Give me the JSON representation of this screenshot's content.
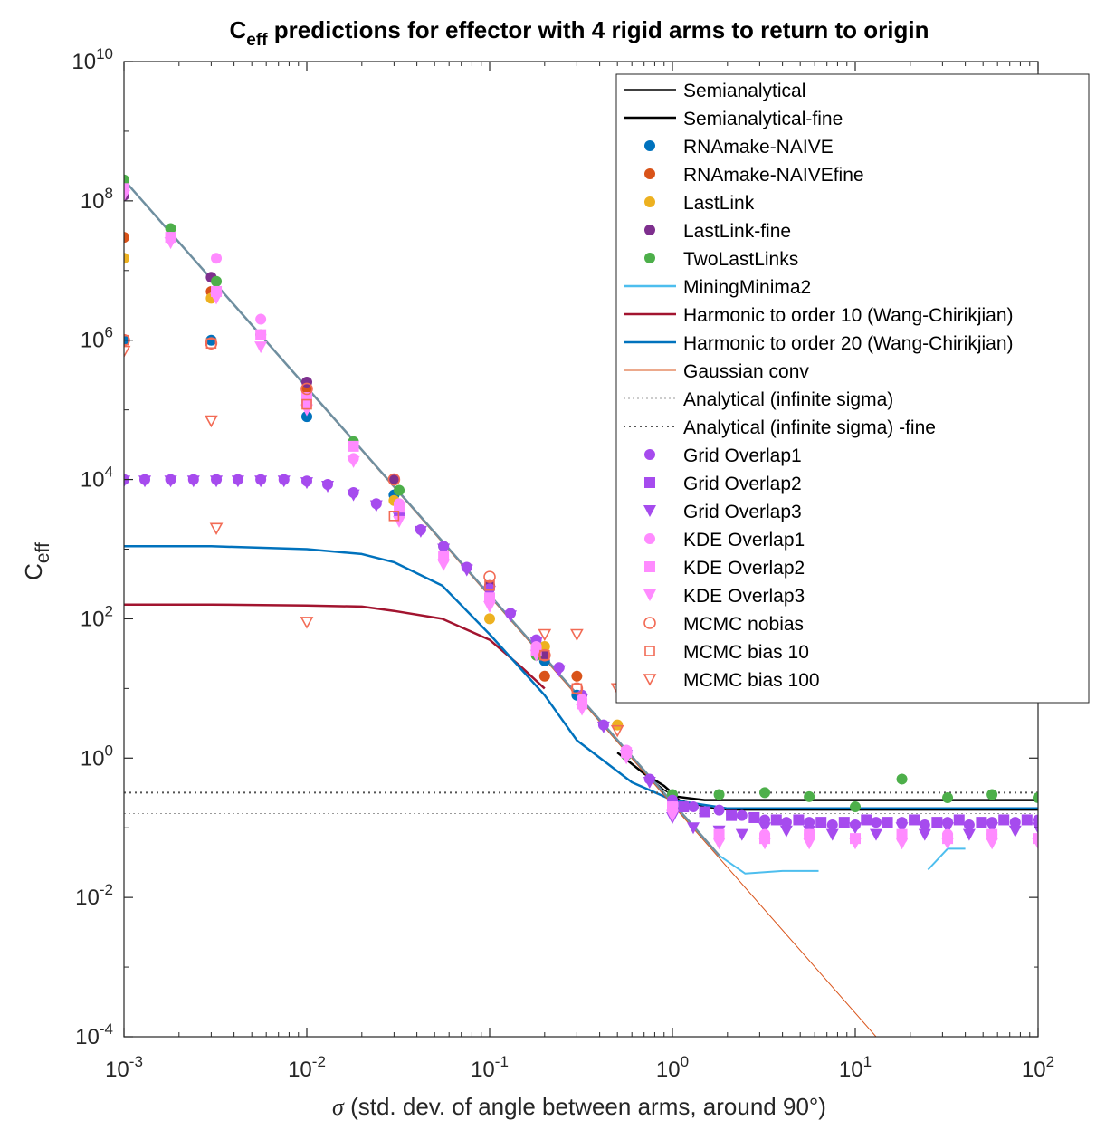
{
  "chart_data": {
    "type": "scatter",
    "title_main": "C",
    "title_sub": "eff",
    "title_rest": " predictions for effector with 4 rigid arms to return to origin",
    "xlabel_sigma": "σ",
    "xlabel_rest": " (std. dev. of angle between arms, around 90°)",
    "ylabel_main": "C",
    "ylabel_sub": "eff",
    "xscale": "log",
    "yscale": "log",
    "xlim": [
      0.001,
      100
    ],
    "ylim": [
      0.0001,
      10000000000
    ],
    "grid": false,
    "legend_position": "top-right",
    "x_ticks": [
      {
        "value": 0.001,
        "base": "10",
        "exp": "-3"
      },
      {
        "value": 0.01,
        "base": "10",
        "exp": "-2"
      },
      {
        "value": 0.1,
        "base": "10",
        "exp": "-1"
      },
      {
        "value": 1,
        "base": "10",
        "exp": "0"
      },
      {
        "value": 10,
        "base": "10",
        "exp": "1"
      },
      {
        "value": 100,
        "base": "10",
        "exp": "2"
      }
    ],
    "y_ticks": [
      {
        "value": 0.0001,
        "base": "10",
        "exp": "-4"
      },
      {
        "value": 0.01,
        "base": "10",
        "exp": "-2"
      },
      {
        "value": 1,
        "base": "10",
        "exp": "0"
      },
      {
        "value": 100,
        "base": "10",
        "exp": "2"
      },
      {
        "value": 10000,
        "base": "10",
        "exp": "4"
      },
      {
        "value": 1000000,
        "base": "10",
        "exp": "6"
      },
      {
        "value": 100000000,
        "base": "10",
        "exp": "8"
      },
      {
        "value": 10000000000,
        "base": "10",
        "exp": "10"
      }
    ],
    "series": [
      {
        "name": "Semianalytical",
        "kind": "line",
        "color": "#000000",
        "width": 1.5,
        "x": [
          0.5,
          0.7,
          0.9,
          1.1,
          1.5,
          2,
          5,
          10,
          100
        ],
        "y": [
          1.2,
          0.6,
          0.35,
          0.25,
          0.2,
          0.18,
          0.18,
          0.18,
          0.18
        ]
      },
      {
        "name": "Semianalytical-fine",
        "kind": "line",
        "color": "#000000",
        "width": 2.5,
        "x": [
          0.5,
          0.7,
          0.9,
          1.05,
          1.5,
          2,
          5,
          10,
          100
        ],
        "y": [
          1.2,
          0.6,
          0.4,
          0.28,
          0.25,
          0.25,
          0.25,
          0.25,
          0.25
        ]
      },
      {
        "name": "RNAmake-NAIVE",
        "kind": "marker",
        "marker": "circle",
        "color": "#0072BD",
        "x": [
          0.001,
          0.003,
          0.01,
          0.03,
          0.1,
          0.2,
          0.3
        ],
        "y": [
          1000000,
          1000000,
          80000,
          6000,
          200,
          25,
          8
        ]
      },
      {
        "name": "RNAmake-NAIVEfine",
        "kind": "marker",
        "marker": "circle",
        "color": "#D95319",
        "x": [
          0.001,
          0.003,
          0.01,
          0.03,
          0.1,
          0.2,
          0.3
        ],
        "y": [
          30000000,
          5000000,
          200000,
          10000,
          300,
          15,
          15
        ]
      },
      {
        "name": "LastLink",
        "kind": "marker",
        "marker": "circle",
        "color": "#EDB120",
        "x": [
          0.001,
          0.003,
          0.01,
          0.03,
          0.1,
          0.2,
          0.5
        ],
        "y": [
          15000000,
          4000000,
          150000,
          5000,
          100,
          40,
          3
        ]
      },
      {
        "name": "LastLink-fine",
        "kind": "marker",
        "marker": "circle",
        "color": "#7E2F8E",
        "x": [
          0.001,
          0.003,
          0.01,
          0.03,
          0.1,
          0.2
        ],
        "y": [
          120000000,
          8000000,
          250000,
          10000,
          300,
          30
        ]
      },
      {
        "name": "TwoLastLinks",
        "kind": "marker",
        "marker": "circle",
        "color": "#4DAF4A",
        "x": [
          0.001,
          0.0018,
          0.0032,
          0.0056,
          0.018,
          0.032,
          0.056,
          0.1,
          0.18,
          0.32,
          0.56,
          1,
          1.8,
          3.2,
          5.6,
          10,
          18,
          32,
          56,
          100
        ],
        "y": [
          200000000,
          40000000,
          7000000,
          1200000,
          35000,
          7000,
          1100,
          200,
          30,
          6,
          1.1,
          0.3,
          0.3,
          0.32,
          0.28,
          0.2,
          0.5,
          0.27,
          0.3,
          0.27
        ]
      },
      {
        "name": "MiningMinima2",
        "kind": "line",
        "color": "#4DBEEE",
        "width": 2,
        "x": [
          1.8,
          2.5,
          4,
          6.3
        ],
        "y": [
          0.04,
          0.022,
          0.024,
          0.024
        ]
      },
      {
        "name": "MiningMinima2-b",
        "kind": "line",
        "color": "#4DBEEE",
        "width": 2,
        "x": [
          25,
          32,
          40
        ],
        "y": [
          0.025,
          0.05,
          0.05
        ]
      },
      {
        "name": "Harmonic to order 10 (Wang-Chirikjian)",
        "kind": "line",
        "color": "#A2142F",
        "width": 2.5,
        "x": [
          0.001,
          0.003,
          0.01,
          0.02,
          0.03,
          0.055,
          0.1,
          0.15,
          0.2
        ],
        "y": [
          160,
          160,
          155,
          150,
          130,
          100,
          50,
          20,
          10
        ]
      },
      {
        "name": "Harmonic to order 20 (Wang-Chirikjian)",
        "kind": "line",
        "color": "#0072BD",
        "width": 2.5,
        "x": [
          0.001,
          0.003,
          0.01,
          0.02,
          0.03,
          0.055,
          0.1,
          0.2,
          0.3,
          0.6,
          1,
          2,
          100
        ],
        "y": [
          1100,
          1100,
          1000,
          850,
          650,
          300,
          60,
          8,
          1.8,
          0.45,
          0.25,
          0.19,
          0.19
        ]
      },
      {
        "name": "Gaussian conv",
        "kind": "line",
        "color": "#D95319",
        "width": 1,
        "x": [
          0.001,
          13
        ],
        "y": [
          200000000,
          0.0001
        ]
      },
      {
        "name": "Gaussian-approx",
        "kind": "line",
        "color": "#6F8FA0",
        "width": 2.5,
        "x": [
          0.001,
          1.8
        ],
        "y": [
          200000000,
          0.04
        ]
      },
      {
        "name": "Analytical (infinite sigma)",
        "kind": "line",
        "color": "#9a9a9a",
        "width": 1,
        "dash": "2,3",
        "x": [
          0.001,
          100
        ],
        "y": [
          0.16,
          0.16
        ]
      },
      {
        "name": "Analytical (infinite sigma) -fine",
        "kind": "line",
        "color": "#555555",
        "width": 2,
        "dash": "2,4",
        "x": [
          0.001,
          100
        ],
        "y": [
          0.32,
          0.32
        ]
      },
      {
        "name": "Grid Overlap1",
        "kind": "marker",
        "marker": "circle",
        "color": "#A64BEE",
        "x": [
          0.001,
          0.0013,
          0.0018,
          0.0024,
          0.0032,
          0.0042,
          0.0056,
          0.0075,
          0.01,
          0.013,
          0.018,
          0.024,
          0.032,
          0.042,
          0.056,
          0.075,
          0.1,
          0.13,
          0.18,
          0.24,
          0.32,
          0.42,
          0.56,
          0.75,
          1,
          1.3,
          1.8,
          2.4,
          3.2,
          4.2,
          5.6,
          7.5,
          10,
          13,
          18,
          24,
          32,
          42,
          56,
          75,
          100
        ],
        "y": [
          10000,
          10000,
          10000,
          10000,
          10000,
          10000,
          10000,
          10000,
          9500,
          8500,
          6500,
          4500,
          3000,
          1900,
          1100,
          550,
          270,
          120,
          50,
          20,
          8,
          3,
          1.2,
          0.5,
          0.25,
          0.2,
          0.18,
          0.15,
          0.13,
          0.12,
          0.12,
          0.11,
          0.11,
          0.12,
          0.12,
          0.11,
          0.12,
          0.11,
          0.12,
          0.12,
          0.13
        ]
      },
      {
        "name": "Grid Overlap2",
        "kind": "marker",
        "marker": "square",
        "color": "#A64BEE",
        "x": [
          1.15,
          1.5,
          2.1,
          2.8,
          3.7,
          4.9,
          6.5,
          8.7,
          11.5,
          15,
          21,
          28,
          37,
          49,
          65,
          87
        ],
        "y": [
          0.2,
          0.17,
          0.15,
          0.14,
          0.13,
          0.13,
          0.12,
          0.12,
          0.13,
          0.12,
          0.13,
          0.12,
          0.13,
          0.12,
          0.13,
          0.13
        ]
      },
      {
        "name": "Grid Overlap3",
        "kind": "marker",
        "marker": "tri-down",
        "color": "#A64BEE",
        "x": [
          0.001,
          0.0013,
          0.0018,
          0.0024,
          0.0032,
          0.0042,
          0.0056,
          0.0075,
          0.01,
          0.013,
          0.018,
          0.024,
          0.032,
          0.042,
          0.056,
          0.075,
          0.1,
          0.13,
          0.18,
          0.24,
          0.32,
          0.42,
          0.56,
          0.75,
          1,
          1.3,
          1.8,
          2.4,
          3.2,
          4.2,
          5.6,
          7.5,
          10,
          13,
          18,
          24,
          32,
          42,
          56,
          75,
          100
        ],
        "y": [
          9500,
          9500,
          9500,
          9500,
          9500,
          9500,
          9500,
          9500,
          9000,
          8000,
          6000,
          4200,
          2800,
          1800,
          1000,
          500,
          250,
          110,
          45,
          18,
          7,
          2.8,
          1.1,
          0.45,
          0.14,
          0.1,
          0.09,
          0.08,
          0.1,
          0.09,
          0.09,
          0.08,
          0.1,
          0.08,
          0.1,
          0.08,
          0.1,
          0.08,
          0.1,
          0.09,
          0.1
        ]
      },
      {
        "name": "KDE Overlap1",
        "kind": "marker",
        "marker": "circle",
        "color": "#FF8BFF",
        "x": [
          0.001,
          0.0018,
          0.0032,
          0.0056,
          0.01,
          0.018,
          0.032,
          0.056,
          0.1,
          0.18,
          0.32,
          0.56,
          1,
          1.8,
          3.2,
          5.6,
          10,
          18,
          32,
          56,
          100
        ],
        "y": [
          150000000,
          30000000,
          15000000,
          2000000,
          120000,
          20000,
          4500,
          700,
          180,
          40,
          7,
          1.3,
          0.2,
          0.07,
          0.08,
          0.08,
          0.07,
          0.07,
          0.08,
          0.08,
          0.07
        ]
      },
      {
        "name": "KDE Overlap2",
        "kind": "marker",
        "marker": "square",
        "color": "#FF8BFF",
        "x": [
          0.001,
          0.0018,
          0.0032,
          0.0056,
          0.01,
          0.018,
          0.032,
          0.056,
          0.1,
          0.18,
          0.32,
          0.56,
          1,
          1.8,
          3.2,
          5.6,
          10,
          18,
          32,
          56,
          100
        ],
        "y": [
          150000000,
          30000000,
          5000000,
          1200000,
          150000,
          30000,
          4000,
          800,
          200,
          35,
          6,
          1.2,
          0.2,
          0.08,
          0.07,
          0.08,
          0.07,
          0.08,
          0.07,
          0.08,
          0.07
        ]
      },
      {
        "name": "KDE Overlap3",
        "kind": "marker",
        "marker": "tri-down",
        "color": "#FF8BFF",
        "x": [
          0.001,
          0.0018,
          0.0032,
          0.0056,
          0.01,
          0.018,
          0.032,
          0.056,
          0.1,
          0.18,
          0.32,
          0.56,
          1,
          1.8,
          3.2,
          5.6,
          10,
          18,
          32,
          56,
          100
        ],
        "y": [
          120000000,
          25000000,
          4000000,
          800000,
          100000,
          18000,
          2500,
          600,
          150,
          30,
          5,
          1,
          0.15,
          0.06,
          0.06,
          0.06,
          0.06,
          0.06,
          0.06,
          0.06,
          0.06
        ]
      },
      {
        "name": "MCMC nobias",
        "kind": "marker",
        "marker": "circle-open",
        "color": "#F26B55",
        "x": [
          0.001,
          0.003,
          0.01,
          0.03,
          0.1,
          0.2,
          0.3
        ],
        "y": [
          1000000,
          900000,
          200000,
          10000,
          400,
          30,
          10
        ]
      },
      {
        "name": "MCMC bias 10",
        "kind": "marker",
        "marker": "square-open",
        "color": "#F26B55",
        "x": [
          0.001,
          0.003,
          0.01,
          0.03,
          0.1,
          0.2,
          0.3
        ],
        "y": [
          1000000,
          900000,
          120000,
          3000,
          300,
          30,
          10
        ]
      },
      {
        "name": "MCMC bias 100",
        "kind": "marker",
        "marker": "tri-open",
        "color": "#F26B55",
        "x": [
          0.001,
          0.003,
          0.0032,
          0.01,
          0.2,
          0.3,
          0.5,
          0.5
        ],
        "y": [
          700000,
          70000,
          2000,
          90,
          60,
          60,
          10,
          2.5
        ]
      }
    ],
    "legend": [
      {
        "label": "Semianalytical",
        "kind": "line",
        "color": "#000000",
        "width": 1.5
      },
      {
        "label": "Semianalytical-fine",
        "kind": "line",
        "color": "#000000",
        "width": 2.5
      },
      {
        "label": "RNAmake-NAIVE",
        "kind": "marker",
        "marker": "circle",
        "color": "#0072BD"
      },
      {
        "label": "RNAmake-NAIVEfine",
        "kind": "marker",
        "marker": "circle",
        "color": "#D95319"
      },
      {
        "label": "LastLink",
        "kind": "marker",
        "marker": "circle",
        "color": "#EDB120"
      },
      {
        "label": "LastLink-fine",
        "kind": "marker",
        "marker": "circle",
        "color": "#7E2F8E"
      },
      {
        "label": "TwoLastLinks",
        "kind": "marker",
        "marker": "circle",
        "color": "#4DAF4A"
      },
      {
        "label": "MiningMinima2",
        "kind": "line",
        "color": "#4DBEEE",
        "width": 2.5
      },
      {
        "label": "Harmonic to order 10 (Wang-Chirikjian)",
        "kind": "line",
        "color": "#A2142F",
        "width": 2.5
      },
      {
        "label": "Harmonic to order 20 (Wang-Chirikjian)",
        "kind": "line",
        "color": "#0072BD",
        "width": 2.5
      },
      {
        "label": "Gaussian conv",
        "kind": "line",
        "color": "#D95319",
        "width": 1
      },
      {
        "label": "Analytical (infinite sigma)",
        "kind": "line",
        "color": "#9a9a9a",
        "width": 1,
        "dash": "2,3"
      },
      {
        "label": "Analytical (infinite sigma) -fine",
        "kind": "line",
        "color": "#555555",
        "width": 2,
        "dash": "2,4"
      },
      {
        "label": "Grid Overlap1",
        "kind": "marker",
        "marker": "circle",
        "color": "#A64BEE"
      },
      {
        "label": "Grid Overlap2",
        "kind": "marker",
        "marker": "square",
        "color": "#A64BEE"
      },
      {
        "label": "Grid Overlap3",
        "kind": "marker",
        "marker": "tri-down",
        "color": "#A64BEE"
      },
      {
        "label": "KDE Overlap1",
        "kind": "marker",
        "marker": "circle",
        "color": "#FF8BFF"
      },
      {
        "label": "KDE Overlap2",
        "kind": "marker",
        "marker": "square",
        "color": "#FF8BFF"
      },
      {
        "label": "KDE Overlap3",
        "kind": "marker",
        "marker": "tri-down",
        "color": "#FF8BFF"
      },
      {
        "label": "MCMC nobias",
        "kind": "marker",
        "marker": "circle-open",
        "color": "#F26B55"
      },
      {
        "label": "MCMC bias 10",
        "kind": "marker",
        "marker": "square-open",
        "color": "#F26B55"
      },
      {
        "label": "MCMC bias 100",
        "kind": "marker",
        "marker": "tri-open",
        "color": "#F26B55"
      }
    ]
  }
}
